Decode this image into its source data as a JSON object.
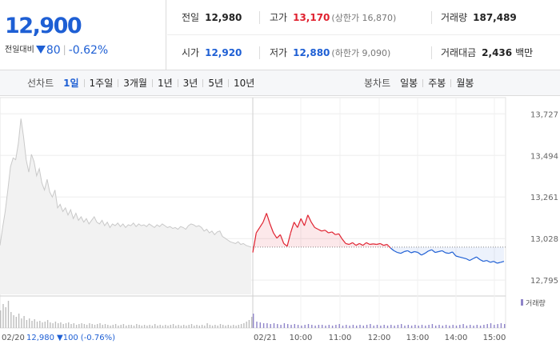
{
  "quote": {
    "price": "12,900",
    "change_label": "전일대비",
    "change_value": "80",
    "change_rate": "-0.62%",
    "stats": {
      "prev_close_label": "전일",
      "prev_close": "12,980",
      "high_label": "고가",
      "high": "13,170",
      "upper_limit": "(상한가 16,870)",
      "volume_label": "거래량",
      "volume": "187,489",
      "open_label": "시가",
      "open": "12,920",
      "low_label": "저가",
      "low": "12,880",
      "lower_limit": "(하한가 9,090)",
      "turnover_label": "거래대금",
      "turnover": "2,436",
      "turnover_unit": "백만"
    }
  },
  "period_bar": {
    "line_title": "선차트",
    "line_options": [
      "1일",
      "1주일",
      "3개월",
      "1년",
      "3년",
      "5년",
      "10년"
    ],
    "active_line_option": "1일",
    "candle_title": "봉차트",
    "candle_options": [
      "일봉",
      "주봉",
      "월봉"
    ]
  },
  "colors": {
    "up": "#e0212f",
    "down": "#1e5fd4",
    "prev": "#c9c9c9"
  },
  "chart_data": {
    "type": "line",
    "yticks": [
      13727,
      13494,
      13261,
      13028,
      12795
    ],
    "ylim": [
      12715,
      13800
    ],
    "reference_price": 12980,
    "x_ticks": [
      "02/21",
      "10:00",
      "11:00",
      "12:00",
      "13:00",
      "14:00",
      "15:00"
    ],
    "prev_day_label": "02/20",
    "prev_day_summary": {
      "close": "12,980",
      "change": "100",
      "rate": "(-0.76%)"
    },
    "volume_legend": "거래량",
    "prev_day_series": [
      12990,
      13090,
      13180,
      13300,
      13430,
      13480,
      13470,
      13560,
      13700,
      13600,
      13470,
      13400,
      13500,
      13460,
      13380,
      13420,
      13340,
      13300,
      13360,
      13290,
      13260,
      13300,
      13200,
      13220,
      13180,
      13200,
      13160,
      13190,
      13140,
      13170,
      13130,
      13150,
      13120,
      13140,
      13110,
      13130,
      13150,
      13120,
      13110,
      13130,
      13100,
      13120,
      13090,
      13110,
      13100,
      13115,
      13095,
      13110,
      13090,
      13105,
      13100,
      13115,
      13095,
      13110,
      13100,
      13105,
      13095,
      13110,
      13100,
      13090,
      13105,
      13095,
      13110,
      13100,
      13090,
      13095,
      13085,
      13090,
      13080,
      13095,
      13090,
      13080,
      13100,
      13110,
      13105,
      13095,
      13100,
      13090,
      13070,
      13080,
      13060,
      13070,
      13050,
      13065,
      13070,
      13040,
      13030,
      13020,
      13010,
      13005,
      13000,
      13010,
      12995,
      13000,
      12990,
      12985,
      12980
    ],
    "today_series": [
      12950,
      13060,
      13090,
      13120,
      13170,
      13110,
      13060,
      13030,
      13050,
      13000,
      12985,
      13060,
      13120,
      13090,
      13140,
      13100,
      13160,
      13120,
      13090,
      13080,
      13070,
      13075,
      13060,
      13065,
      13050,
      13055,
      13025,
      13000,
      12995,
      13005,
      12990,
      13000,
      12990,
      13005,
      12995,
      12998,
      12995,
      13000,
      12990,
      12995,
      12975,
      12960,
      12950,
      12945,
      12955,
      12960,
      12948,
      12955,
      12950,
      12935,
      12945,
      12958,
      12965,
      12950,
      12955,
      12960,
      12948,
      12945,
      12953,
      12930,
      12925,
      12920,
      12915,
      12905,
      12915,
      12925,
      12910,
      12900,
      12905,
      12895,
      12900,
      12890,
      12895,
      12900
    ],
    "volume_prev": [
      22,
      30,
      26,
      34,
      20,
      16,
      14,
      18,
      12,
      15,
      10,
      12,
      9,
      11,
      8,
      9,
      7,
      8,
      10,
      7,
      6,
      8,
      6,
      7,
      5,
      6,
      7,
      5,
      6,
      4,
      5,
      6,
      5,
      4,
      6,
      5,
      4,
      5,
      6,
      4,
      5,
      4,
      3,
      4,
      5,
      3,
      4,
      5,
      3,
      4,
      4,
      3,
      5,
      4,
      3,
      4,
      3,
      4,
      3,
      5,
      3,
      4,
      3,
      4,
      3,
      4,
      5,
      3,
      4,
      3,
      4,
      3,
      4,
      5,
      3,
      4,
      3,
      4,
      3,
      6,
      4,
      3,
      4,
      3,
      5,
      4,
      3,
      4,
      3,
      4,
      3,
      4,
      5,
      6,
      8,
      10,
      14
    ],
    "volume_today": [
      18,
      8,
      7,
      6,
      6,
      5,
      6,
      5,
      4,
      6,
      5,
      4,
      5,
      4,
      3,
      4,
      5,
      4,
      3,
      4,
      4,
      3,
      4,
      3,
      4,
      5,
      3,
      4,
      3,
      4,
      3,
      4,
      3,
      4,
      5,
      3,
      4,
      3,
      4,
      3,
      4,
      3,
      4,
      5,
      3,
      4,
      3,
      4,
      3,
      4,
      3,
      4,
      5,
      3,
      4,
      3,
      4,
      3,
      4,
      3,
      4,
      5,
      3,
      4,
      3,
      4,
      3,
      4,
      5,
      6,
      4,
      5,
      6,
      5
    ]
  }
}
